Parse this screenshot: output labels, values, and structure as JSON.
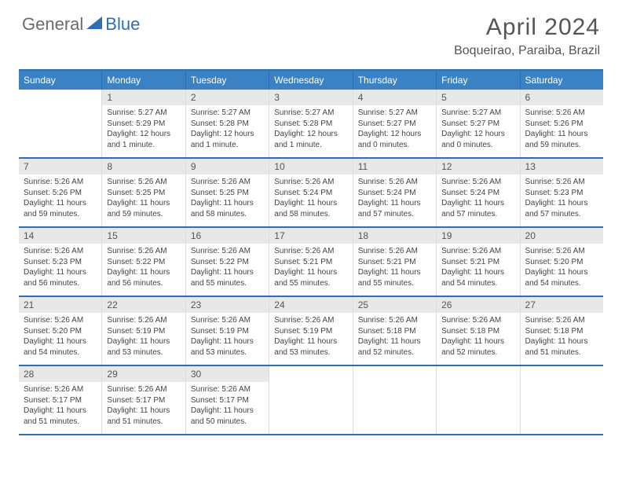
{
  "logo": {
    "text1": "General",
    "text2": "Blue"
  },
  "title": "April 2024",
  "location": "Boqueirao, Paraiba, Brazil",
  "colors": {
    "header_bg": "#3b82c4",
    "header_border": "#2e6fb2",
    "daynum_bg": "#e8e8e8",
    "text": "#444444",
    "logo_gray": "#6b6b6b",
    "logo_blue": "#2e6fb2"
  },
  "day_headers": [
    "Sunday",
    "Monday",
    "Tuesday",
    "Wednesday",
    "Thursday",
    "Friday",
    "Saturday"
  ],
  "weeks": [
    [
      {
        "n": "",
        "sunrise": "",
        "sunset": "",
        "daylight": ""
      },
      {
        "n": "1",
        "sunrise": "Sunrise: 5:27 AM",
        "sunset": "Sunset: 5:29 PM",
        "daylight": "Daylight: 12 hours and 1 minute."
      },
      {
        "n": "2",
        "sunrise": "Sunrise: 5:27 AM",
        "sunset": "Sunset: 5:28 PM",
        "daylight": "Daylight: 12 hours and 1 minute."
      },
      {
        "n": "3",
        "sunrise": "Sunrise: 5:27 AM",
        "sunset": "Sunset: 5:28 PM",
        "daylight": "Daylight: 12 hours and 1 minute."
      },
      {
        "n": "4",
        "sunrise": "Sunrise: 5:27 AM",
        "sunset": "Sunset: 5:27 PM",
        "daylight": "Daylight: 12 hours and 0 minutes."
      },
      {
        "n": "5",
        "sunrise": "Sunrise: 5:27 AM",
        "sunset": "Sunset: 5:27 PM",
        "daylight": "Daylight: 12 hours and 0 minutes."
      },
      {
        "n": "6",
        "sunrise": "Sunrise: 5:26 AM",
        "sunset": "Sunset: 5:26 PM",
        "daylight": "Daylight: 11 hours and 59 minutes."
      }
    ],
    [
      {
        "n": "7",
        "sunrise": "Sunrise: 5:26 AM",
        "sunset": "Sunset: 5:26 PM",
        "daylight": "Daylight: 11 hours and 59 minutes."
      },
      {
        "n": "8",
        "sunrise": "Sunrise: 5:26 AM",
        "sunset": "Sunset: 5:25 PM",
        "daylight": "Daylight: 11 hours and 59 minutes."
      },
      {
        "n": "9",
        "sunrise": "Sunrise: 5:26 AM",
        "sunset": "Sunset: 5:25 PM",
        "daylight": "Daylight: 11 hours and 58 minutes."
      },
      {
        "n": "10",
        "sunrise": "Sunrise: 5:26 AM",
        "sunset": "Sunset: 5:24 PM",
        "daylight": "Daylight: 11 hours and 58 minutes."
      },
      {
        "n": "11",
        "sunrise": "Sunrise: 5:26 AM",
        "sunset": "Sunset: 5:24 PM",
        "daylight": "Daylight: 11 hours and 57 minutes."
      },
      {
        "n": "12",
        "sunrise": "Sunrise: 5:26 AM",
        "sunset": "Sunset: 5:24 PM",
        "daylight": "Daylight: 11 hours and 57 minutes."
      },
      {
        "n": "13",
        "sunrise": "Sunrise: 5:26 AM",
        "sunset": "Sunset: 5:23 PM",
        "daylight": "Daylight: 11 hours and 57 minutes."
      }
    ],
    [
      {
        "n": "14",
        "sunrise": "Sunrise: 5:26 AM",
        "sunset": "Sunset: 5:23 PM",
        "daylight": "Daylight: 11 hours and 56 minutes."
      },
      {
        "n": "15",
        "sunrise": "Sunrise: 5:26 AM",
        "sunset": "Sunset: 5:22 PM",
        "daylight": "Daylight: 11 hours and 56 minutes."
      },
      {
        "n": "16",
        "sunrise": "Sunrise: 5:26 AM",
        "sunset": "Sunset: 5:22 PM",
        "daylight": "Daylight: 11 hours and 55 minutes."
      },
      {
        "n": "17",
        "sunrise": "Sunrise: 5:26 AM",
        "sunset": "Sunset: 5:21 PM",
        "daylight": "Daylight: 11 hours and 55 minutes."
      },
      {
        "n": "18",
        "sunrise": "Sunrise: 5:26 AM",
        "sunset": "Sunset: 5:21 PM",
        "daylight": "Daylight: 11 hours and 55 minutes."
      },
      {
        "n": "19",
        "sunrise": "Sunrise: 5:26 AM",
        "sunset": "Sunset: 5:21 PM",
        "daylight": "Daylight: 11 hours and 54 minutes."
      },
      {
        "n": "20",
        "sunrise": "Sunrise: 5:26 AM",
        "sunset": "Sunset: 5:20 PM",
        "daylight": "Daylight: 11 hours and 54 minutes."
      }
    ],
    [
      {
        "n": "21",
        "sunrise": "Sunrise: 5:26 AM",
        "sunset": "Sunset: 5:20 PM",
        "daylight": "Daylight: 11 hours and 54 minutes."
      },
      {
        "n": "22",
        "sunrise": "Sunrise: 5:26 AM",
        "sunset": "Sunset: 5:19 PM",
        "daylight": "Daylight: 11 hours and 53 minutes."
      },
      {
        "n": "23",
        "sunrise": "Sunrise: 5:26 AM",
        "sunset": "Sunset: 5:19 PM",
        "daylight": "Daylight: 11 hours and 53 minutes."
      },
      {
        "n": "24",
        "sunrise": "Sunrise: 5:26 AM",
        "sunset": "Sunset: 5:19 PM",
        "daylight": "Daylight: 11 hours and 53 minutes."
      },
      {
        "n": "25",
        "sunrise": "Sunrise: 5:26 AM",
        "sunset": "Sunset: 5:18 PM",
        "daylight": "Daylight: 11 hours and 52 minutes."
      },
      {
        "n": "26",
        "sunrise": "Sunrise: 5:26 AM",
        "sunset": "Sunset: 5:18 PM",
        "daylight": "Daylight: 11 hours and 52 minutes."
      },
      {
        "n": "27",
        "sunrise": "Sunrise: 5:26 AM",
        "sunset": "Sunset: 5:18 PM",
        "daylight": "Daylight: 11 hours and 51 minutes."
      }
    ],
    [
      {
        "n": "28",
        "sunrise": "Sunrise: 5:26 AM",
        "sunset": "Sunset: 5:17 PM",
        "daylight": "Daylight: 11 hours and 51 minutes."
      },
      {
        "n": "29",
        "sunrise": "Sunrise: 5:26 AM",
        "sunset": "Sunset: 5:17 PM",
        "daylight": "Daylight: 11 hours and 51 minutes."
      },
      {
        "n": "30",
        "sunrise": "Sunrise: 5:26 AM",
        "sunset": "Sunset: 5:17 PM",
        "daylight": "Daylight: 11 hours and 50 minutes."
      },
      {
        "n": "",
        "sunrise": "",
        "sunset": "",
        "daylight": ""
      },
      {
        "n": "",
        "sunrise": "",
        "sunset": "",
        "daylight": ""
      },
      {
        "n": "",
        "sunrise": "",
        "sunset": "",
        "daylight": ""
      },
      {
        "n": "",
        "sunrise": "",
        "sunset": "",
        "daylight": ""
      }
    ]
  ]
}
